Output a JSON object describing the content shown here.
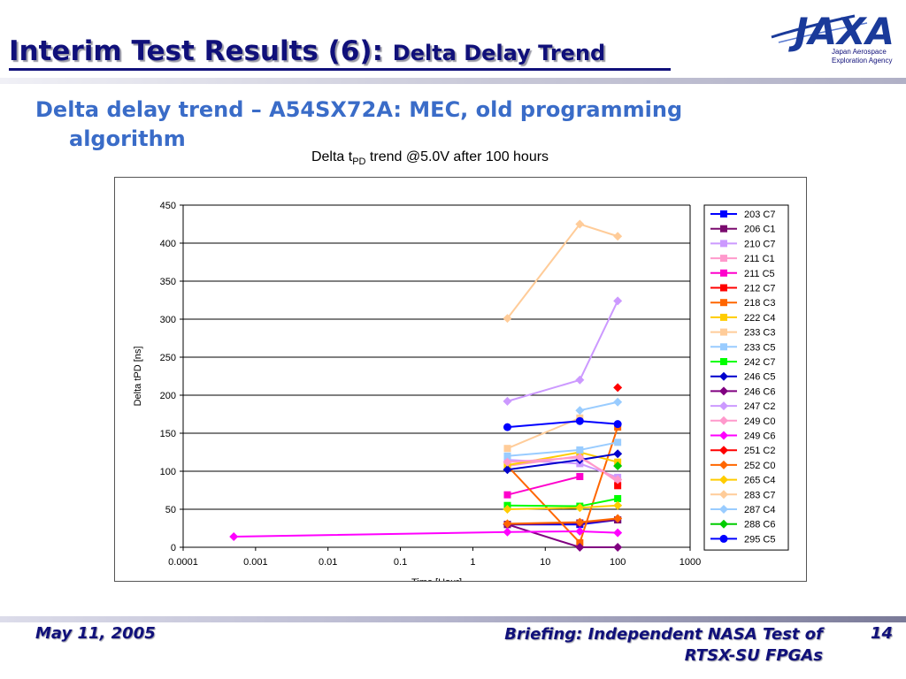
{
  "slide": {
    "title_main": "Interim Test Results (6): ",
    "title_sub": "Delta Delay Trend",
    "bullet_line1": "Delta delay trend – A54SX72A: MEC, old programming",
    "bullet_line2": "algorithm",
    "chart_title_prefix": "Delta t",
    "chart_title_sub": "PD",
    "chart_title_suffix": " trend @5.0V after 100 hours",
    "footer_date": "May 11, 2005",
    "footer_briefing": "Briefing: Independent NASA Test of RTSX-SU FPGAs",
    "footer_page": "14"
  },
  "logo": {
    "word": "JAXA",
    "line1": "Japan Aerospace",
    "line2": "Exploration Agency",
    "color": "#1a3a9a"
  },
  "chart_data": {
    "type": "scatter",
    "title": "Delta tPD trend @5.0V after 100 hours",
    "xlabel": "Time [Hour]",
    "ylabel": "Delta tPD [ns]",
    "xscale": "log",
    "xlim": [
      0.0001,
      1000
    ],
    "ylim": [
      0,
      450
    ],
    "x_ticks": [
      0.0001,
      0.001,
      0.01,
      0.1,
      1,
      10,
      100,
      1000
    ],
    "x_tick_labels": [
      "0.0001",
      "0.001",
      "0.01",
      "0.1",
      "1",
      "10",
      "100",
      "1000"
    ],
    "y_ticks": [
      0,
      50,
      100,
      150,
      200,
      250,
      300,
      350,
      400,
      450
    ],
    "grid": "horizontal",
    "legend_position": "right",
    "series": [
      {
        "name": "203 C7",
        "color": "#0000ff",
        "marker": "square",
        "points": [
          [
            3,
            30
          ],
          [
            30,
            30
          ],
          [
            100,
            36
          ]
        ]
      },
      {
        "name": "206 C1",
        "color": "#7a0a6e",
        "marker": "square",
        "points": [
          [
            3,
            30
          ],
          [
            30,
            32
          ],
          [
            100,
            36
          ]
        ]
      },
      {
        "name": "210 C7",
        "color": "#cc99ff",
        "marker": "square",
        "points": [
          [
            3,
            115
          ],
          [
            30,
            110
          ],
          [
            100,
            92
          ]
        ]
      },
      {
        "name": "211 C1",
        "color": "#ff99cc",
        "marker": "square",
        "points": [
          [
            3,
            107
          ],
          [
            30,
            120
          ],
          [
            100,
            86
          ]
        ]
      },
      {
        "name": "211 C5",
        "color": "#ff00cc",
        "marker": "square",
        "points": [
          [
            3,
            69
          ],
          [
            30,
            93
          ]
        ]
      },
      {
        "name": "212 C7",
        "color": "#ff0000",
        "marker": "square",
        "points": [
          [
            100,
            81
          ]
        ]
      },
      {
        "name": "218 C3",
        "color": "#ff6600",
        "marker": "square",
        "points": [
          [
            3,
            107
          ],
          [
            30,
            6
          ],
          [
            100,
            158
          ]
        ]
      },
      {
        "name": "222 C4",
        "color": "#ffcc00",
        "marker": "square",
        "points": [
          [
            3,
            108
          ],
          [
            30,
            125
          ],
          [
            100,
            112
          ]
        ]
      },
      {
        "name": "233 C3",
        "color": "#ffcc99",
        "marker": "square",
        "points": [
          [
            3,
            130
          ],
          [
            30,
            170
          ]
        ]
      },
      {
        "name": "233 C5",
        "color": "#99ccff",
        "marker": "square",
        "points": [
          [
            3,
            120
          ],
          [
            30,
            128
          ],
          [
            100,
            138
          ]
        ]
      },
      {
        "name": "242 C7",
        "color": "#00ff00",
        "marker": "square",
        "points": [
          [
            3,
            55
          ],
          [
            30,
            54
          ],
          [
            100,
            64
          ]
        ]
      },
      {
        "name": "246 C5",
        "color": "#0000cc",
        "marker": "diamond",
        "points": [
          [
            3,
            102
          ],
          [
            30,
            115
          ],
          [
            100,
            123
          ]
        ]
      },
      {
        "name": "246 C6",
        "color": "#800080",
        "marker": "diamond",
        "points": [
          [
            3,
            30
          ],
          [
            30,
            0
          ],
          [
            100,
            0
          ]
        ]
      },
      {
        "name": "247 C2",
        "color": "#cc99ff",
        "marker": "diamond",
        "points": [
          [
            3,
            192
          ],
          [
            30,
            220
          ],
          [
            100,
            324
          ]
        ]
      },
      {
        "name": "249 C0",
        "color": "#ff99cc",
        "marker": "diamond",
        "points": [
          [
            3,
            112
          ],
          [
            30,
            118
          ],
          [
            100,
            89
          ]
        ]
      },
      {
        "name": "249 C6",
        "color": "#ff00ff",
        "marker": "diamond",
        "points": [
          [
            0.0005,
            14
          ],
          [
            3,
            20
          ],
          [
            30,
            21
          ],
          [
            100,
            19
          ]
        ]
      },
      {
        "name": "251 C2",
        "color": "#ff0000",
        "marker": "diamond",
        "points": [
          [
            100,
            210
          ]
        ]
      },
      {
        "name": "252 C0",
        "color": "#ff6600",
        "marker": "diamond",
        "points": [
          [
            3,
            31
          ],
          [
            30,
            33
          ],
          [
            100,
            38
          ]
        ]
      },
      {
        "name": "265 C4",
        "color": "#ffcc00",
        "marker": "diamond",
        "points": [
          [
            3,
            50
          ],
          [
            30,
            52
          ],
          [
            100,
            55
          ]
        ]
      },
      {
        "name": "283 C7",
        "color": "#ffcc99",
        "marker": "diamond",
        "points": [
          [
            3,
            301
          ],
          [
            30,
            425
          ],
          [
            100,
            409
          ]
        ]
      },
      {
        "name": "287 C4",
        "color": "#99ccff",
        "marker": "diamond",
        "points": [
          [
            30,
            180
          ],
          [
            100,
            191
          ]
        ]
      },
      {
        "name": "288 C6",
        "color": "#00cc00",
        "marker": "diamond",
        "points": [
          [
            100,
            107
          ]
        ]
      },
      {
        "name": "295 C5",
        "color": "#0000ff",
        "marker": "circle",
        "points": [
          [
            3,
            158
          ],
          [
            30,
            166
          ],
          [
            100,
            162
          ]
        ]
      }
    ]
  }
}
